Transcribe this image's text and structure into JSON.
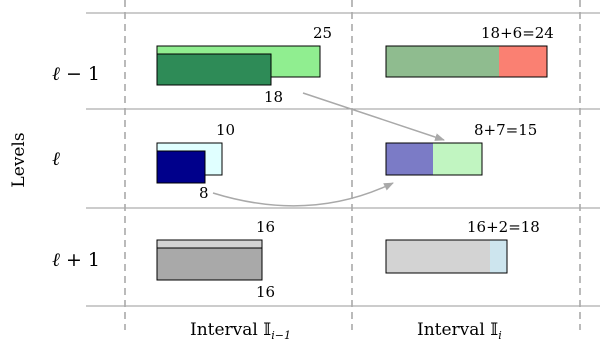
{
  "axis": {
    "y_label": "Levels"
  },
  "levels": [
    {
      "symbol": "ℓ",
      "suffix": " − 1"
    },
    {
      "symbol": "ℓ",
      "suffix": ""
    },
    {
      "symbol": "ℓ",
      "suffix": " + 1"
    }
  ],
  "intervals": [
    {
      "label_text": "Interval ",
      "label_math": "𝕀",
      "label_sub": "i−1"
    },
    {
      "label_text": "Interval ",
      "label_math": "𝕀",
      "label_sub": "i"
    }
  ],
  "left_blocks": [
    {
      "outer_value": "25",
      "inner_value": "18",
      "outer_color": "#90ee90",
      "inner_color": "#2e8b57"
    },
    {
      "outer_value": "10",
      "inner_value": "8",
      "outer_color": "#e0ffff",
      "inner_color": "#00008b"
    },
    {
      "outer_value": "16",
      "inner_value": "16",
      "outer_color": "#d3d3d3",
      "inner_color": "#a9a9a9"
    }
  ],
  "right_blocks": [
    {
      "label": "18+6=24",
      "first_color": "#8fbc8f",
      "second_color": "#fa8072"
    },
    {
      "label": "8+7=15",
      "first_color": "#7b7bc6",
      "second_color": "#c1f5c1"
    },
    {
      "label": "16+2=18",
      "first_color": "#d3d3d3",
      "second_color": "#cde5ee"
    }
  ],
  "colors": {
    "arrow": "#a9a9a9",
    "grid_line": "#999999",
    "dashed": "#aaaaaa"
  }
}
